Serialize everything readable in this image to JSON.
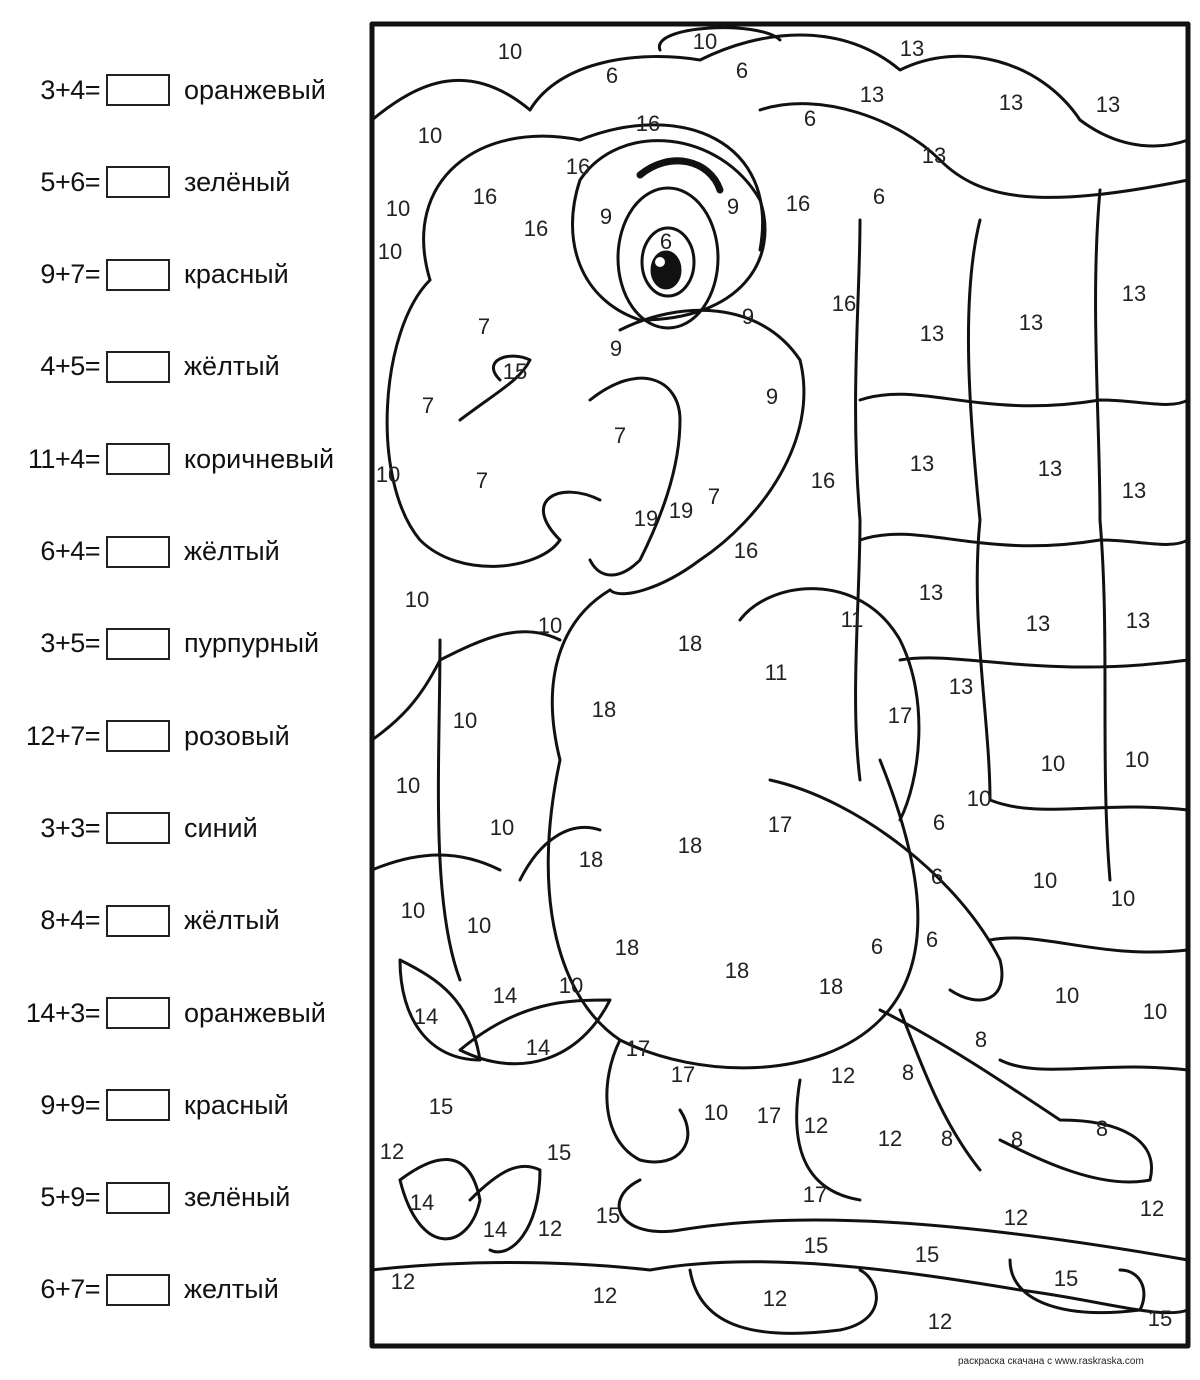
{
  "legend": [
    {
      "equation": "3+4=",
      "color": "оранжевый"
    },
    {
      "equation": "5+6=",
      "color": "зелёный"
    },
    {
      "equation": "9+7=",
      "color": "красный"
    },
    {
      "equation": "4+5=",
      "color": "жёлтый"
    },
    {
      "equation": "11+4=",
      "color": "коричневый"
    },
    {
      "equation": "6+4=",
      "color": "жёлтый"
    },
    {
      "equation": "3+5=",
      "color": "пурпурный"
    },
    {
      "equation": "12+7=",
      "color": "розовый"
    },
    {
      "equation": "3+3=",
      "color": "синий"
    },
    {
      "equation": "8+4=",
      "color": "жёлтый"
    },
    {
      "equation": "14+3=",
      "color": "оранжевый"
    },
    {
      "equation": "9+9=",
      "color": "красный"
    },
    {
      "equation": "5+9=",
      "color": "зелёный"
    },
    {
      "equation": "6+7=",
      "color": "желтый"
    }
  ],
  "picture": {
    "subject": "parrot on branch",
    "numbers": [
      "10",
      "10",
      "13",
      "6",
      "6",
      "13",
      "13",
      "13",
      "10",
      "16",
      "6",
      "13",
      "16",
      "10",
      "16",
      "9",
      "9",
      "16",
      "6",
      "16",
      "10",
      "6",
      "13",
      "9",
      "16",
      "13",
      "13",
      "7",
      "9",
      "15",
      "7",
      "9",
      "7",
      "10",
      "7",
      "16",
      "13",
      "13",
      "13",
      "19",
      "19",
      "7",
      "16",
      "10",
      "10",
      "13",
      "11",
      "13",
      "13",
      "18",
      "11",
      "13",
      "10",
      "18",
      "17",
      "10",
      "10",
      "10",
      "10",
      "18",
      "17",
      "10",
      "6",
      "18",
      "6",
      "10",
      "10",
      "10",
      "10",
      "18",
      "6",
      "6",
      "18",
      "18",
      "14",
      "10",
      "10",
      "10",
      "14",
      "14",
      "17",
      "8",
      "17",
      "12",
      "8",
      "15",
      "10",
      "17",
      "12",
      "12",
      "8",
      "8",
      "8",
      "12",
      "15",
      "17",
      "14",
      "14",
      "12",
      "15",
      "12",
      "12",
      "15",
      "15",
      "15",
      "12",
      "12",
      "12",
      "12",
      "15"
    ]
  },
  "footer": "раскраска скачана с www.raskraska.com"
}
